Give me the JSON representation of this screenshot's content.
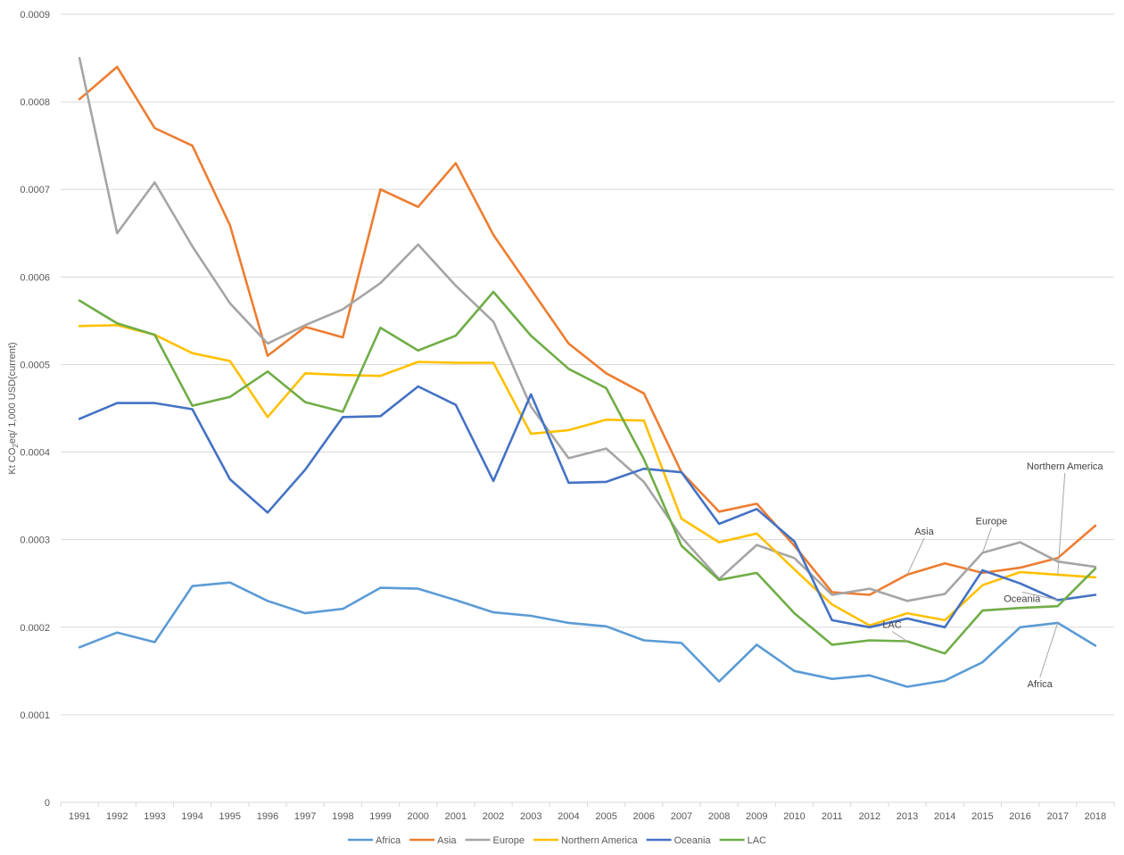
{
  "chart_data": {
    "type": "line",
    "title": "",
    "xlabel": "",
    "ylabel": "Kt CO2eq/ 1,000 USD(current)",
    "ylabel_parts": {
      "before": "Kt CO",
      "sub": "2",
      "after": "eq/ 1,000 USD(current)"
    },
    "ylim": [
      0,
      0.0009
    ],
    "yticks": [
      0,
      0.0001,
      0.0002,
      0.0003,
      0.0004,
      0.0005,
      0.0006,
      0.0007,
      0.0008,
      0.0009
    ],
    "ytick_labels": [
      "0",
      "0.0001",
      "0.0002",
      "0.0003",
      "0.0004",
      "0.0005",
      "0.0006",
      "0.0007",
      "0.0008",
      "0.0009"
    ],
    "grid": true,
    "legend_position": "bottom",
    "categories": [
      "1991",
      "1992",
      "1993",
      "1994",
      "1995",
      "1996",
      "1997",
      "1998",
      "1999",
      "2000",
      "2001",
      "2002",
      "2003",
      "2004",
      "2005",
      "2006",
      "2007",
      "2008",
      "2009",
      "2010",
      "2011",
      "2012",
      "2013",
      "2014",
      "2015",
      "2016",
      "2017",
      "2018"
    ],
    "series": [
      {
        "name": "Africa",
        "color": "#5B9BD5",
        "values": [
          0.000177,
          0.000194,
          0.000183,
          0.000247,
          0.000251,
          0.00023,
          0.000216,
          0.000221,
          0.000245,
          0.000244,
          0.000231,
          0.000217,
          0.000213,
          0.000205,
          0.000201,
          0.000185,
          0.000182,
          0.000138,
          0.00018,
          0.00015,
          0.000141,
          0.000145,
          0.000132,
          0.000139,
          0.00016,
          0.0002,
          0.000205,
          0.000179
        ]
      },
      {
        "name": "Asia",
        "color": "#ED7D31",
        "values": [
          0.000803,
          0.00084,
          0.00077,
          0.00075,
          0.000659,
          0.00051,
          0.000543,
          0.000531,
          0.0007,
          0.00068,
          0.00073,
          0.000648,
          0.000586,
          0.000524,
          0.00049,
          0.000467,
          0.000377,
          0.000332,
          0.000341,
          0.000293,
          0.00024,
          0.000237,
          0.00026,
          0.000273,
          0.000262,
          0.000268,
          0.000279,
          0.000316
        ]
      },
      {
        "name": "Europe",
        "color": "#A5A5A5",
        "values": [
          0.00085,
          0.00065,
          0.000708,
          0.000635,
          0.00057,
          0.000524,
          0.000545,
          0.000563,
          0.000593,
          0.000637,
          0.00059,
          0.000549,
          0.000452,
          0.000393,
          0.000404,
          0.000366,
          0.000303,
          0.000255,
          0.000294,
          0.000279,
          0.000237,
          0.000244,
          0.00023,
          0.000238,
          0.000285,
          0.000297,
          0.000275,
          0.000269
        ]
      },
      {
        "name": "Northern America",
        "color": "#FFC000",
        "values": [
          0.000544,
          0.000545,
          0.000534,
          0.000513,
          0.000504,
          0.00044,
          0.00049,
          0.000488,
          0.000487,
          0.000503,
          0.000502,
          0.000502,
          0.000421,
          0.000425,
          0.000437,
          0.000436,
          0.000324,
          0.000297,
          0.000307,
          0.000266,
          0.000226,
          0.000202,
          0.000216,
          0.000208,
          0.000248,
          0.000263,
          0.00026,
          0.000257
        ]
      },
      {
        "name": "Oceania",
        "color": "#4472C4",
        "values": [
          0.000438,
          0.000456,
          0.000456,
          0.000449,
          0.000369,
          0.000331,
          0.00038,
          0.00044,
          0.000441,
          0.000475,
          0.000454,
          0.000367,
          0.000466,
          0.000365,
          0.000366,
          0.000381,
          0.000377,
          0.000318,
          0.000335,
          0.000298,
          0.000208,
          0.0002,
          0.00021,
          0.0002,
          0.000265,
          0.00025,
          0.000231,
          0.000237
        ]
      },
      {
        "name": "LAC",
        "color": "#70AD47",
        "values": [
          0.000573,
          0.000547,
          0.000534,
          0.000453,
          0.000463,
          0.000492,
          0.000457,
          0.000446,
          0.000542,
          0.000516,
          0.000533,
          0.000583,
          0.000533,
          0.000495,
          0.000473,
          0.000392,
          0.000293,
          0.000254,
          0.000262,
          0.000216,
          0.00018,
          0.000185,
          0.000184,
          0.00017,
          0.000219,
          0.000222,
          0.000224,
          0.000267
        ]
      }
    ],
    "annotations": [
      {
        "text": "Northern America",
        "anchor_series": "Northern America",
        "anchor_year": "2017"
      },
      {
        "text": "Europe",
        "anchor_series": "Europe",
        "anchor_year": "2015"
      },
      {
        "text": "Asia",
        "anchor_series": "Asia",
        "anchor_year": "2013"
      },
      {
        "text": "Oceania",
        "anchor_series": "Oceania",
        "anchor_year": "2017"
      },
      {
        "text": "LAC",
        "anchor_series": "LAC",
        "anchor_year": "2013"
      },
      {
        "text": "Africa",
        "anchor_series": "Africa",
        "anchor_year": "2017"
      }
    ]
  }
}
